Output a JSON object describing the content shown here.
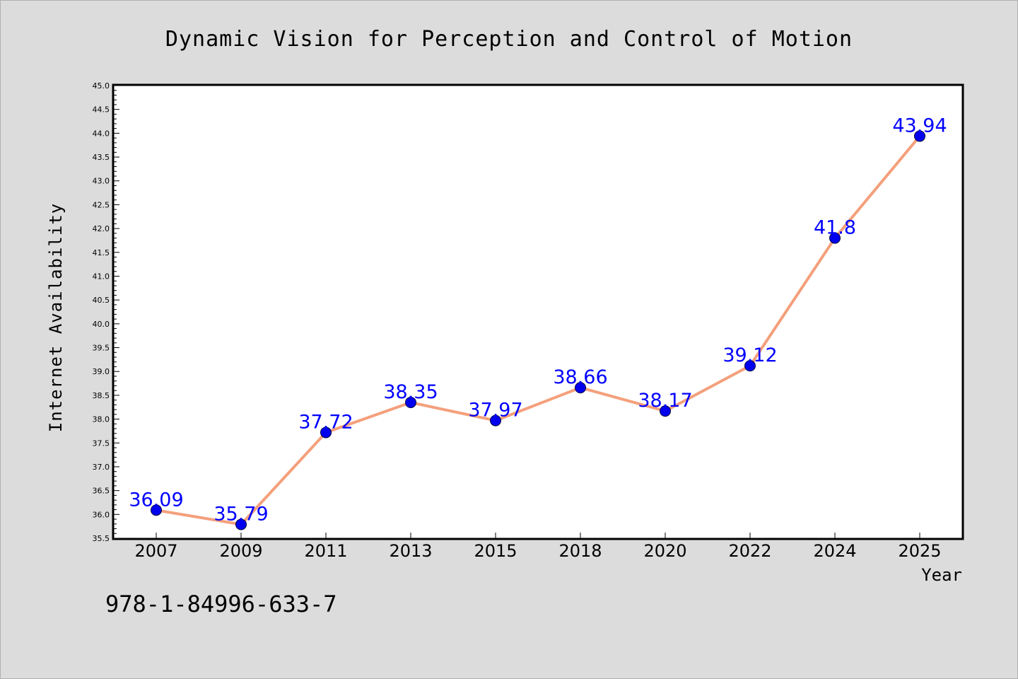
{
  "chart_data": {
    "type": "line",
    "title": "Dynamic Vision for Perception and Control of Motion",
    "xlabel": "Year",
    "ylabel": "Internet Availability",
    "categories": [
      "2007",
      "2009",
      "2011",
      "2013",
      "2015",
      "2018",
      "2020",
      "2022",
      "2024",
      "2025"
    ],
    "series": [
      {
        "values": [
          36.09,
          35.79,
          37.72,
          38.35,
          37.97,
          38.66,
          38.17,
          39.12,
          41.8,
          43.94
        ],
        "data_labels": [
          "36.09",
          "35.79",
          "37.72",
          "38.35",
          "37.97",
          "38.66",
          "38.17",
          "39.12",
          "41.8",
          "43.94"
        ]
      }
    ],
    "ylim": [
      35.5,
      45.0
    ],
    "yticks": [
      "35.5",
      "36.0",
      "36.5",
      "37.0",
      "37.5",
      "38.0",
      "38.5",
      "39.0",
      "39.5",
      "40.0",
      "40.5",
      "41.0",
      "41.5",
      "42.0",
      "42.5",
      "43.0",
      "43.5",
      "44.0",
      "44.5",
      "45.0"
    ],
    "grid": false,
    "legend": "none",
    "colors": {
      "line": "#f4a07c",
      "marker": "#0000ee",
      "data_label": "#0000ff",
      "background": "#dcdcdc",
      "plot_background": "#ffffff"
    }
  },
  "footer": {
    "isbn": "978-1-84996-633-7"
  }
}
